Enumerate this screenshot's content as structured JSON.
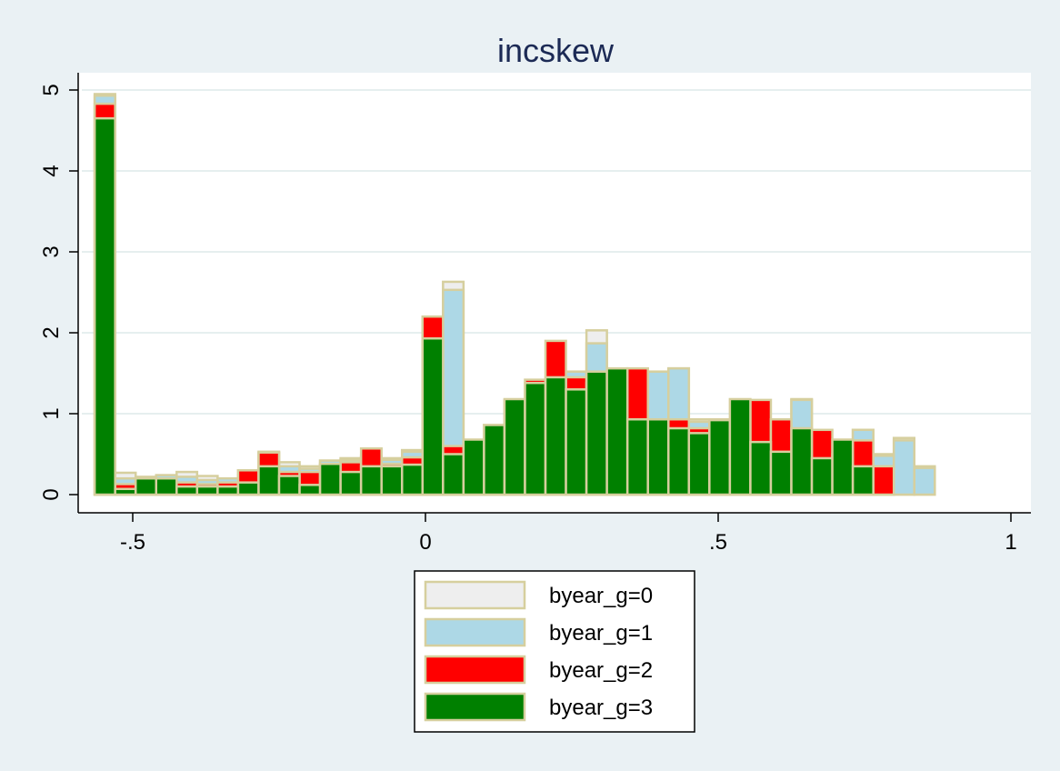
{
  "chart_data": {
    "type": "bar",
    "subtype": "overlaid-histogram",
    "title": "incskew",
    "xlabel": "",
    "ylabel": "",
    "xlim": [
      -0.6,
      1.0
    ],
    "ylim": [
      0,
      5
    ],
    "x_ticks": [
      -0.5,
      0,
      0.5,
      1
    ],
    "x_tick_labels": [
      "-.5",
      "0",
      ".5",
      "1"
    ],
    "y_ticks": [
      0,
      1,
      2,
      3,
      4,
      5
    ],
    "y_tick_labels": [
      "0",
      "1",
      "2",
      "3",
      "4",
      "5"
    ],
    "grid": "horizontal",
    "legend_position": "bottom",
    "bin_width": 0.035,
    "bin_start": -0.565,
    "edge_color": "#d6cf9e",
    "series": [
      {
        "name": "byear_g=0",
        "color": "#eeeeee",
        "values": [
          4.95,
          0.27,
          0.22,
          0.24,
          0.28,
          0.23,
          0.2,
          0.3,
          0.52,
          0.4,
          0.35,
          0.42,
          0.45,
          0.48,
          0.45,
          0.55,
          0.45,
          2.63,
          0.58,
          0.67,
          0.72,
          0.86,
          1.18,
          1.52,
          2.03,
          1.45,
          1.4,
          1.52,
          1.56,
          0.93,
          0.93,
          0.82,
          0.76,
          0.92,
          1.18,
          0.66,
          0.55,
          0.8,
          0.5,
          0.7,
          0.35
        ]
      },
      {
        "name": "byear_g=1",
        "color": "#add8e6",
        "values": [
          4.93,
          0.2,
          0.2,
          0.24,
          0.22,
          0.18,
          0.2,
          0.24,
          0.53,
          0.35,
          0.32,
          0.42,
          0.43,
          0.46,
          0.43,
          0.53,
          0.42,
          2.53,
          0.58,
          0.66,
          0.7,
          0.83,
          1.17,
          1.52,
          1.87,
          1.43,
          1.35,
          1.52,
          1.56,
          0.9,
          0.91,
          0.8,
          0.75,
          0.9,
          1.17,
          0.65,
          0.53,
          0.8,
          0.48,
          0.67,
          0.33
        ]
      },
      {
        "name": "byear_g=2",
        "color": "#ff0000",
        "values": [
          4.83,
          0.13,
          0.15,
          0.2,
          0.15,
          0.13,
          0.15,
          0.3,
          0.52,
          0.28,
          0.28,
          0.37,
          0.4,
          0.57,
          0.38,
          0.46,
          2.2,
          0.6,
          0.65,
          0.86,
          1.17,
          1.42,
          1.9,
          1.45,
          1.38,
          1.5,
          1.56,
          0.93,
          0.93,
          0.82,
          0.75,
          0.92,
          1.17,
          0.93,
          0.53,
          0.8,
          0.5,
          0.67,
          0.35
        ]
      },
      {
        "name": "byear_g=3",
        "color": "#008000",
        "values": [
          4.65,
          0.07,
          0.2,
          0.2,
          0.1,
          0.1,
          0.1,
          0.15,
          0.35,
          0.23,
          0.12,
          0.38,
          0.28,
          0.35,
          0.35,
          0.37,
          1.93,
          0.5,
          0.68,
          0.86,
          1.18,
          1.38,
          1.45,
          1.3,
          1.52,
          1.56,
          0.93,
          0.93,
          0.82,
          0.76,
          0.92,
          1.18,
          0.65,
          0.53,
          0.82,
          0.45,
          0.68,
          0.35
        ]
      }
    ]
  }
}
